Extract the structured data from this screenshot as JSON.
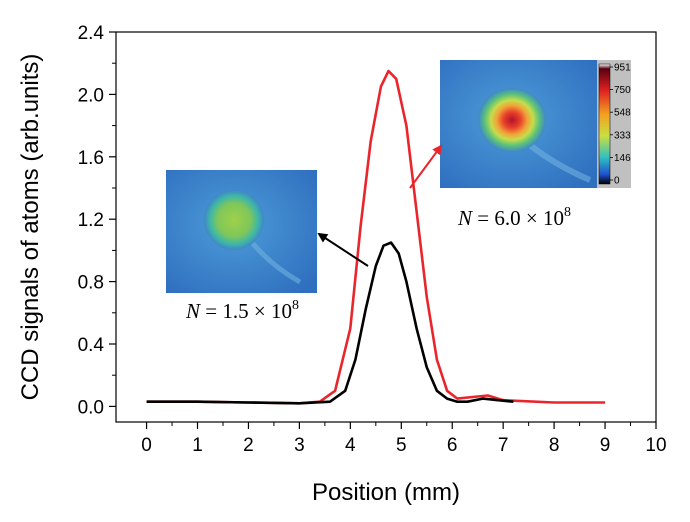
{
  "chart_data": {
    "type": "line",
    "title": "",
    "xlabel": "Position (mm)",
    "ylabel": "CCD signals of atoms (arb.units)",
    "xlim": [
      -0.6,
      10
    ],
    "ylim": [
      -0.1,
      2.4
    ],
    "xticks": [
      0,
      1,
      2,
      3,
      4,
      5,
      6,
      7,
      8,
      9,
      10
    ],
    "yticks": [
      0.0,
      0.4,
      0.8,
      1.2,
      1.6,
      2.0,
      2.4
    ],
    "ytick_labels": [
      "0.0",
      "0.4",
      "0.8",
      "1.2",
      "1.6",
      "2.0",
      "2.4"
    ],
    "grid": false,
    "legend": "none",
    "series": [
      {
        "color": "#e8262b",
        "x": [
          0,
          1,
          2,
          3,
          3.4,
          3.7,
          4.0,
          4.2,
          4.4,
          4.6,
          4.75,
          4.9,
          5.1,
          5.3,
          5.5,
          5.7,
          5.9,
          6.1,
          6.4,
          6.7,
          7.0,
          8,
          9
        ],
        "y": [
          0.03,
          0.03,
          0.025,
          0.02,
          0.03,
          0.1,
          0.5,
          1.15,
          1.7,
          2.05,
          2.15,
          2.1,
          1.8,
          1.25,
          0.7,
          0.3,
          0.1,
          0.05,
          0.06,
          0.07,
          0.04,
          0.025,
          0.025
        ]
      },
      {
        "color": "#000000",
        "x": [
          0,
          1,
          2,
          3,
          3.6,
          3.9,
          4.1,
          4.3,
          4.5,
          4.65,
          4.8,
          4.95,
          5.1,
          5.3,
          5.5,
          5.7,
          5.9,
          6.1,
          6.3,
          6.6,
          6.9,
          7.2
        ],
        "y": [
          0.03,
          0.03,
          0.025,
          0.02,
          0.03,
          0.1,
          0.3,
          0.62,
          0.9,
          1.03,
          1.05,
          0.98,
          0.8,
          0.5,
          0.25,
          0.1,
          0.05,
          0.03,
          0.03,
          0.05,
          0.04,
          0.03
        ]
      }
    ],
    "annotations": [
      {
        "text_var": "N",
        "text_eq": " = 1.5 × 10",
        "text_exp": "8"
      },
      {
        "text_var": "N",
        "text_eq": " = 6.0 × 10",
        "text_exp": "8"
      }
    ],
    "colorbar_labels": [
      "951",
      "750",
      "548",
      "333",
      "146",
      "0"
    ]
  }
}
